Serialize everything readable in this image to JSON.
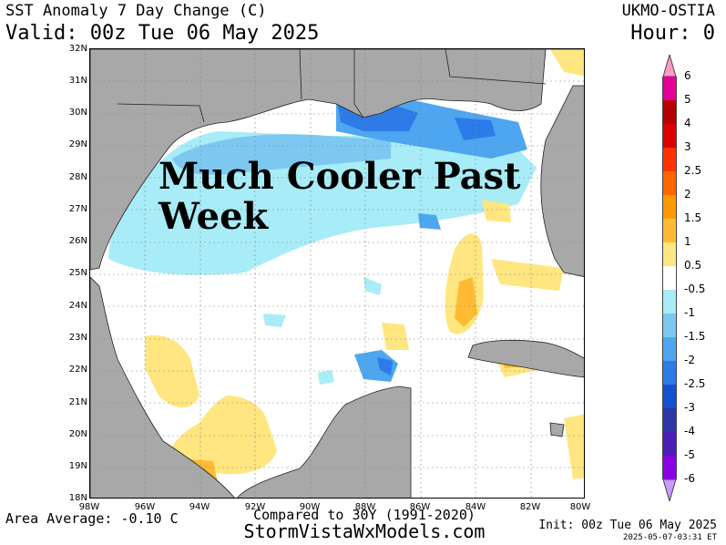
{
  "header": {
    "title": "SST Anomaly 7 Day Change (C)",
    "valid": "Valid: 00z Tue 06 May 2025",
    "model": "UKMO-OSTIA",
    "hour": "Hour: 0"
  },
  "map": {
    "annotation_line1": "Much Cooler Past",
    "annotation_line2": "Week",
    "lat_labels": [
      "32N",
      "31N",
      "30N",
      "29N",
      "28N",
      "27N",
      "26N",
      "25N",
      "24N",
      "23N",
      "22N",
      "21N",
      "20N",
      "19N",
      "18N"
    ],
    "lon_labels": [
      "98W",
      "96W",
      "94W",
      "92W",
      "90W",
      "88W",
      "86W",
      "84W",
      "82W",
      "80W"
    ],
    "colors": {
      "land": "#a8a8a8",
      "ocean_neutral": "#ffffff",
      "grid": "#888888"
    }
  },
  "legend": {
    "labels": [
      "6",
      "5",
      "4",
      "3",
      "2.5",
      "2",
      "1.5",
      "1",
      "0.5",
      "-0.5",
      "-1",
      "-1.5",
      "-2",
      "-2.5",
      "-3",
      "-4",
      "-5",
      "-6"
    ],
    "colors": [
      "#ff99cc",
      "#e60099",
      "#b80000",
      "#dd0000",
      "#ff3300",
      "#ff6600",
      "#ff9900",
      "#ffbb33",
      "#ffe680",
      "#ffffff",
      "#a8ecf7",
      "#7cc8f0",
      "#4da6ef",
      "#2c7be8",
      "#1451cf",
      "#2d37a6",
      "#4b1fb5",
      "#8a00e6",
      "#cc99ff"
    ]
  },
  "footer": {
    "area_average": "Area Average: -0.10 C",
    "compared": "Compared to 30Y (1991-2020)",
    "website": "StormVistaWxModels.com",
    "init": "Init: 00z Tue 06 May 2025",
    "generated": "2025-05-07-03:31 ET"
  }
}
